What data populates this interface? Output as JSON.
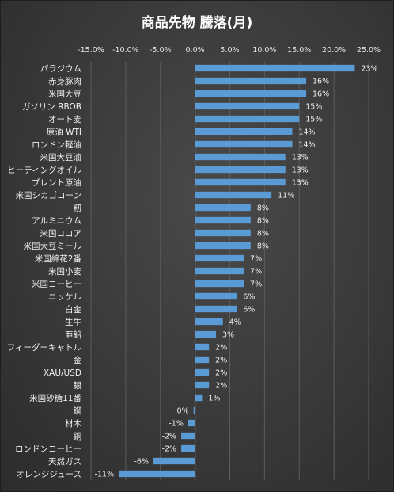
{
  "chart_data": {
    "type": "bar",
    "orientation": "horizontal",
    "title": "商品先物 騰落(月)",
    "xlabel": "",
    "ylabel": "",
    "xlim": [
      -15,
      25
    ],
    "x_ticks": [
      "-15.0%",
      "-10.0%",
      "-5.0%",
      "0.0%",
      "5.0%",
      "10.0%",
      "15.0%",
      "20.0%",
      "25.0%"
    ],
    "x_tick_values": [
      -15,
      -10,
      -5,
      0,
      5,
      10,
      15,
      20,
      25
    ],
    "grid": true,
    "bar_color": "#5b9bd5",
    "categories": [
      "パラジウム",
      "赤身豚肉",
      "米国大豆",
      "ガソリン RBOB",
      "オート麦",
      "原油 WTI",
      "ロンドン軽油",
      "米国大豆油",
      "ヒーティングオイル",
      "ブレント原油",
      "米国シカゴコーン",
      "籾",
      "アルミニウム",
      "米国ココア",
      "米国大豆ミール",
      "米国綿花2番",
      "米国小麦",
      "米国コーヒー",
      "ニッケル",
      "白金",
      "生牛",
      "亜鉛",
      "フィーダーキャトル",
      "金",
      "XAU/USD",
      "銀",
      "米国砂糖11番",
      "鋼",
      "材木",
      "銅",
      "ロンドンコーヒー",
      "天然ガス",
      "オレンジジュース"
    ],
    "values": [
      23,
      16,
      16,
      15,
      15,
      14,
      14,
      13,
      13,
      13,
      11,
      8,
      8,
      8,
      8,
      7,
      7,
      7,
      6,
      6,
      4,
      3,
      2,
      2,
      2,
      2,
      1,
      0,
      -1,
      -2,
      -2,
      -6,
      -11
    ],
    "value_labels": [
      "23%",
      "16%",
      "16%",
      "15%",
      "15%",
      "14%",
      "14%",
      "13%",
      "13%",
      "13%",
      "11%",
      "8%",
      "8%",
      "8%",
      "8%",
      "7%",
      "7%",
      "7%",
      "6%",
      "6%",
      "4%",
      "3%",
      "2%",
      "2%",
      "2%",
      "2%",
      "1%",
      "0%",
      "-1%",
      "-2%",
      "-2%",
      "-6%",
      "-11%"
    ]
  }
}
